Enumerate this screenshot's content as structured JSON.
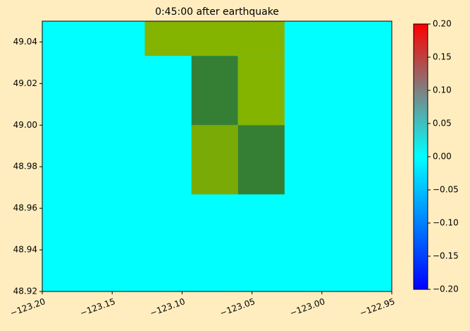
{
  "chart_data": {
    "type": "heatmap",
    "title": "0:45:00 after earthquake",
    "background_color": "#ffedbf",
    "plot_background_color": "#00ffff",
    "xlim": [
      -123.2,
      -122.95
    ],
    "ylim": [
      48.92,
      49.05
    ],
    "xticks": [
      {
        "value": -123.2,
        "label": "−123.20"
      },
      {
        "value": -123.15,
        "label": "−123.15"
      },
      {
        "value": -123.1,
        "label": "−123.10"
      },
      {
        "value": -123.05,
        "label": "−123.05"
      },
      {
        "value": -123.0,
        "label": "−123.00"
      },
      {
        "value": -122.95,
        "label": "−122.95"
      }
    ],
    "yticks": [
      48.92,
      48.94,
      48.96,
      48.98,
      {
        "value": 49.0,
        "label": "49.00"
      },
      49.02,
      49.04
    ],
    "cells": [
      {
        "x": [
          -123.1267,
          -123.0267
        ],
        "y": [
          49.0333,
          49.05
        ],
        "color": "#84b400"
      },
      {
        "x": [
          -123.0933,
          -123.06
        ],
        "y": [
          49.0,
          49.0333
        ],
        "color": "#357f35"
      },
      {
        "x": [
          -123.06,
          -123.0267
        ],
        "y": [
          49.0,
          49.0333
        ],
        "color": "#84b400"
      },
      {
        "x": [
          -123.0933,
          -123.06
        ],
        "y": [
          48.9667,
          49.0
        ],
        "color": "#7aaa05"
      },
      {
        "x": [
          -123.06,
          -123.0267
        ],
        "y": [
          48.9667,
          49.0
        ],
        "color": "#357f35"
      }
    ],
    "colorbar": {
      "lim": [
        -0.2,
        0.2
      ],
      "colors": [
        "#0000ff",
        "#0080ff",
        "#00ffff",
        "#808080",
        "#ff0000"
      ],
      "ticks": [
        {
          "value": -0.2,
          "label": "−0.20"
        },
        {
          "value": -0.15,
          "label": "−0.15"
        },
        {
          "value": -0.1,
          "label": "−0.10"
        },
        {
          "value": -0.05,
          "label": "−0.05"
        },
        {
          "value": 0,
          "label": "0.00"
        },
        {
          "value": 0.05,
          "label": "0.05"
        },
        {
          "value": 0.1,
          "label": "0.10"
        },
        {
          "value": 0.15,
          "label": "0.15"
        },
        {
          "value": 0.2,
          "label": "0.20"
        }
      ]
    }
  }
}
